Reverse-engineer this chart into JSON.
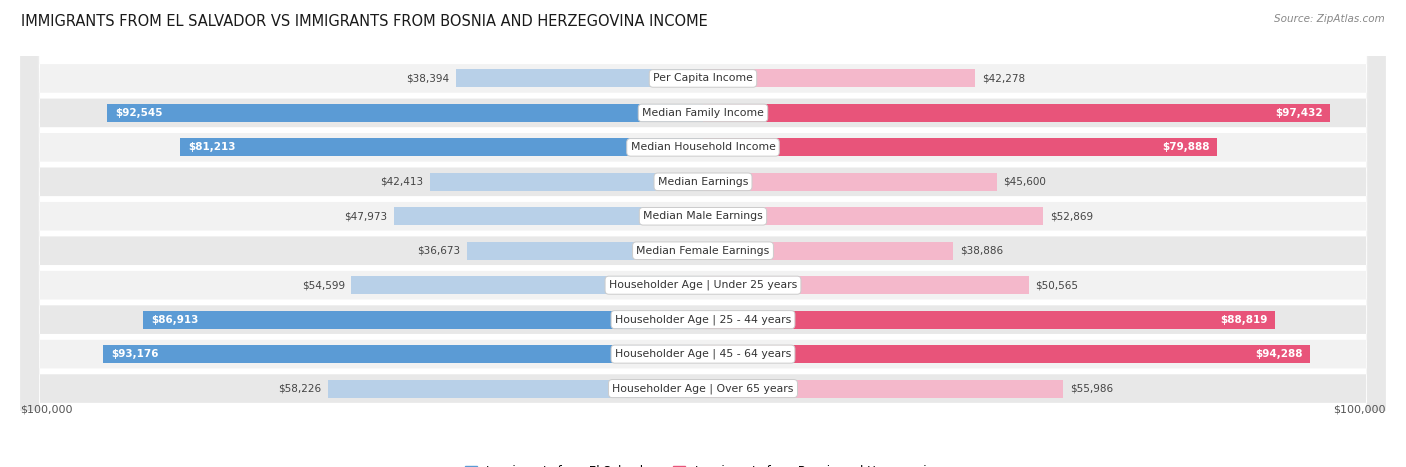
{
  "title": "IMMIGRANTS FROM EL SALVADOR VS IMMIGRANTS FROM BOSNIA AND HERZEGOVINA INCOME",
  "source": "Source: ZipAtlas.com",
  "categories": [
    "Per Capita Income",
    "Median Family Income",
    "Median Household Income",
    "Median Earnings",
    "Median Male Earnings",
    "Median Female Earnings",
    "Householder Age | Under 25 years",
    "Householder Age | 25 - 44 years",
    "Householder Age | 45 - 64 years",
    "Householder Age | Over 65 years"
  ],
  "el_salvador": [
    38394,
    92545,
    81213,
    42413,
    47973,
    36673,
    54599,
    86913,
    93176,
    58226
  ],
  "bosnia": [
    42278,
    97432,
    79888,
    45600,
    52869,
    38886,
    50565,
    88819,
    94288,
    55986
  ],
  "max_val": 100000,
  "color_salvador_light": "#b8d0e8",
  "color_salvador_dark": "#5b9bd5",
  "color_bosnia_light": "#f4b8cb",
  "color_bosnia_dark": "#e8547a",
  "bg_light": "#f0f0f0",
  "bg_dark": "#e0e0e0",
  "legend_salvador": "Immigrants from El Salvador",
  "legend_bosnia": "Immigrants from Bosnia and Herzegovina",
  "axis_label_left": "$100,000",
  "axis_label_right": "$100,000",
  "threshold": 60000
}
